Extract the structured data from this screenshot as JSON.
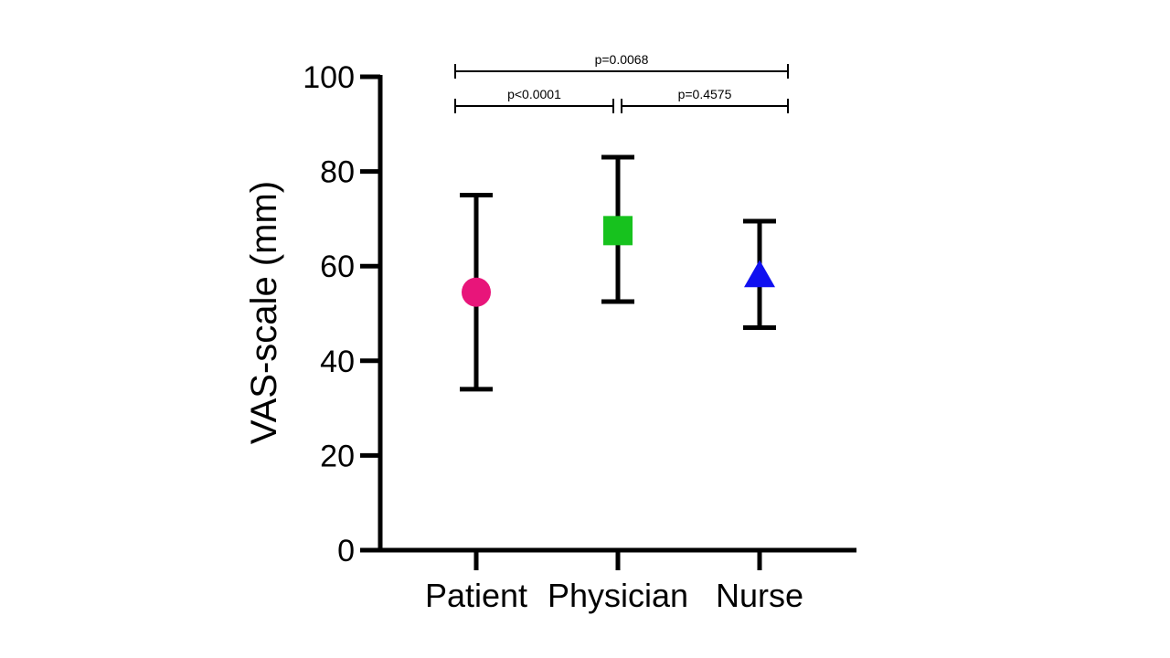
{
  "chart_data": {
    "type": "scatter",
    "ylabel": "VAS-scale (mm)",
    "xlabel": "",
    "ylim": [
      0,
      100
    ],
    "yticks": [
      0,
      20,
      40,
      60,
      80,
      100
    ],
    "grid": false,
    "categories": [
      "Patient",
      "Physician",
      "Nurse"
    ],
    "points": [
      {
        "category": "Patient",
        "mean": 54.5,
        "lower": 34,
        "upper": 75,
        "marker": "circle",
        "color": "#e8157a"
      },
      {
        "category": "Physician",
        "mean": 67.5,
        "lower": 52.5,
        "upper": 83,
        "marker": "square",
        "color": "#17c21e"
      },
      {
        "category": "Nurse",
        "mean": 58,
        "lower": 47,
        "upper": 69.5,
        "marker": "triangle",
        "color": "#1010f0"
      }
    ],
    "comparisons": [
      {
        "from": "Patient",
        "to": "Nurse",
        "label": "p=0.0068"
      },
      {
        "from": "Patient",
        "to": "Physician",
        "label": "p<0.0001"
      },
      {
        "from": "Physician",
        "to": "Nurse",
        "label": "p=0.4575"
      }
    ]
  }
}
